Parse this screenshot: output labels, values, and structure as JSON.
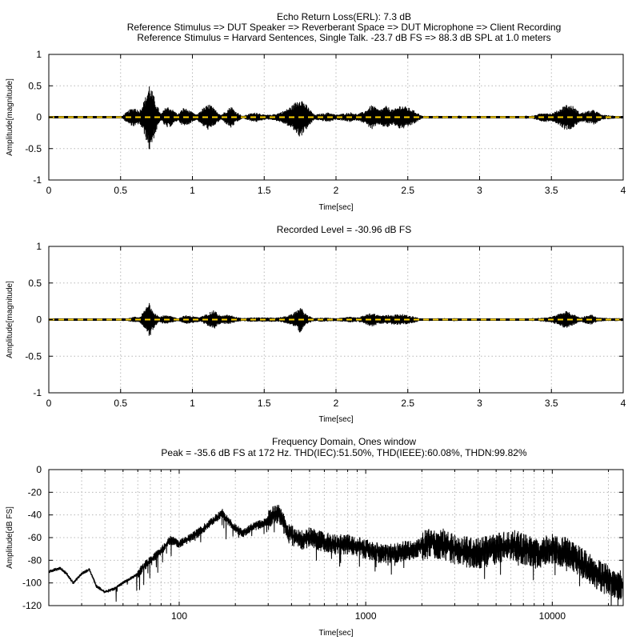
{
  "chart_data": [
    {
      "type": "line",
      "title_lines": [
        "Echo Return Loss(ERL): 7.3 dB",
        "Reference Stimulus => DUT Speaker => Reverberant Space => DUT Microphone => Client Recording",
        "Reference Stimulus = Harvard Sentences, Single Talk. -23.7 dB FS => 88.3 dB SPL at 1.0 meters"
      ],
      "xlabel": "Time[sec]",
      "ylabel": "Amplitude[magnitude]",
      "xlim": [
        0,
        4
      ],
      "ylim": [
        -1,
        1
      ],
      "xticks": [
        0,
        0.5,
        1,
        1.5,
        2,
        2.5,
        3,
        3.5,
        4
      ],
      "xtick_labels": [
        "0",
        "0.5",
        "1",
        "1.5",
        "2",
        "2.5",
        "3",
        "3.5",
        "4"
      ],
      "yticks": [
        -1,
        -0.5,
        0,
        0.5,
        1
      ],
      "ytick_labels": [
        "-1",
        "-0.5",
        "0",
        "0.5",
        "1"
      ],
      "grid": true,
      "series": [
        {
          "style": "waveform",
          "color": "#000000",
          "envelope": [
            [
              0.5,
              0.0
            ],
            [
              0.53,
              0.06
            ],
            [
              0.56,
              0.12
            ],
            [
              0.6,
              0.16
            ],
            [
              0.63,
              0.1
            ],
            [
              0.67,
              0.3
            ],
            [
              0.7,
              0.55
            ],
            [
              0.72,
              0.42
            ],
            [
              0.75,
              0.22
            ],
            [
              0.78,
              0.05
            ],
            [
              0.82,
              0.18
            ],
            [
              0.85,
              0.15
            ],
            [
              0.9,
              0.05
            ],
            [
              0.94,
              0.16
            ],
            [
              0.97,
              0.12
            ],
            [
              1.0,
              0.08
            ],
            [
              1.03,
              0.04
            ],
            [
              1.07,
              0.14
            ],
            [
              1.12,
              0.22
            ],
            [
              1.15,
              0.14
            ],
            [
              1.2,
              0.04
            ],
            [
              1.27,
              0.18
            ],
            [
              1.3,
              0.1
            ],
            [
              1.35,
              0.02
            ],
            [
              1.4,
              0.06
            ],
            [
              1.45,
              0.08
            ],
            [
              1.5,
              0.04
            ],
            [
              1.55,
              0.04
            ],
            [
              1.6,
              0.07
            ],
            [
              1.65,
              0.12
            ],
            [
              1.7,
              0.2
            ],
            [
              1.75,
              0.33
            ],
            [
              1.8,
              0.18
            ],
            [
              1.85,
              0.04
            ],
            [
              1.9,
              0.06
            ],
            [
              1.95,
              0.08
            ],
            [
              2.0,
              0.04
            ],
            [
              2.05,
              0.06
            ],
            [
              2.1,
              0.08
            ],
            [
              2.15,
              0.05
            ],
            [
              2.2,
              0.1
            ],
            [
              2.25,
              0.2
            ],
            [
              2.3,
              0.12
            ],
            [
              2.35,
              0.18
            ],
            [
              2.4,
              0.12
            ],
            [
              2.45,
              0.2
            ],
            [
              2.5,
              0.16
            ],
            [
              2.55,
              0.1
            ],
            [
              2.6,
              0.02
            ],
            [
              2.7,
              0.02
            ],
            [
              2.8,
              0.02
            ],
            [
              2.9,
              0.0
            ],
            [
              3.3,
              0.0
            ],
            [
              3.38,
              0.03
            ],
            [
              3.45,
              0.08
            ],
            [
              3.5,
              0.06
            ],
            [
              3.55,
              0.12
            ],
            [
              3.6,
              0.21
            ],
            [
              3.65,
              0.18
            ],
            [
              3.7,
              0.07
            ],
            [
              3.75,
              0.1
            ],
            [
              3.8,
              0.12
            ],
            [
              3.85,
              0.04
            ],
            [
              3.9,
              0.03
            ],
            [
              3.95,
              0.02
            ],
            [
              4.0,
              0.02
            ]
          ]
        },
        {
          "style": "reference-dashed",
          "color": "#ffd400",
          "y": 0
        }
      ]
    },
    {
      "type": "line",
      "title_lines": [
        "Recorded Level = -30.96 dB FS"
      ],
      "xlabel": "Time[sec]",
      "ylabel": "Amplitude[magnitude]",
      "xlim": [
        0,
        4
      ],
      "ylim": [
        -1,
        1
      ],
      "xticks": [
        0,
        0.5,
        1,
        1.5,
        2,
        2.5,
        3,
        3.5,
        4
      ],
      "xtick_labels": [
        "0",
        "0.5",
        "1",
        "1.5",
        "2",
        "2.5",
        "3",
        "3.5",
        "4"
      ],
      "yticks": [
        -1,
        -0.5,
        0,
        0.5,
        1
      ],
      "ytick_labels": [
        "-1",
        "-0.5",
        "0",
        "0.5",
        "1"
      ],
      "grid": true,
      "series": [
        {
          "style": "waveform",
          "color": "#000000",
          "envelope": [
            [
              0.5,
              0.0
            ],
            [
              0.55,
              0.02
            ],
            [
              0.6,
              0.04
            ],
            [
              0.63,
              0.03
            ],
            [
              0.67,
              0.14
            ],
            [
              0.7,
              0.25
            ],
            [
              0.73,
              0.12
            ],
            [
              0.77,
              0.04
            ],
            [
              0.8,
              0.06
            ],
            [
              0.85,
              0.05
            ],
            [
              0.9,
              0.02
            ],
            [
              0.95,
              0.06
            ],
            [
              1.0,
              0.05
            ],
            [
              1.05,
              0.03
            ],
            [
              1.1,
              0.08
            ],
            [
              1.15,
              0.13
            ],
            [
              1.2,
              0.05
            ],
            [
              1.25,
              0.07
            ],
            [
              1.3,
              0.04
            ],
            [
              1.35,
              0.02
            ],
            [
              1.4,
              0.03
            ],
            [
              1.5,
              0.03
            ],
            [
              1.6,
              0.03
            ],
            [
              1.65,
              0.05
            ],
            [
              1.7,
              0.08
            ],
            [
              1.75,
              0.18
            ],
            [
              1.8,
              0.06
            ],
            [
              1.85,
              0.02
            ],
            [
              1.9,
              0.03
            ],
            [
              2.0,
              0.02
            ],
            [
              2.05,
              0.03
            ],
            [
              2.1,
              0.04
            ],
            [
              2.15,
              0.03
            ],
            [
              2.2,
              0.06
            ],
            [
              2.25,
              0.1
            ],
            [
              2.3,
              0.06
            ],
            [
              2.4,
              0.07
            ],
            [
              2.45,
              0.08
            ],
            [
              2.5,
              0.06
            ],
            [
              2.55,
              0.04
            ],
            [
              2.6,
              0.01
            ],
            [
              2.8,
              0.01
            ],
            [
              2.9,
              0.0
            ],
            [
              3.35,
              0.0
            ],
            [
              3.4,
              0.02
            ],
            [
              3.5,
              0.04
            ],
            [
              3.55,
              0.08
            ],
            [
              3.6,
              0.12
            ],
            [
              3.65,
              0.08
            ],
            [
              3.7,
              0.03
            ],
            [
              3.75,
              0.06
            ],
            [
              3.78,
              0.07
            ],
            [
              3.82,
              0.03
            ],
            [
              3.9,
              0.02
            ],
            [
              4.0,
              0.02
            ]
          ]
        },
        {
          "style": "reference-dashed",
          "color": "#ffd400",
          "y": 0
        }
      ]
    },
    {
      "type": "line",
      "title_lines": [
        "Frequency Domain, Ones window",
        "Peak = -35.6 dB FS at 172 Hz. THD(IEC):51.50%, THD(IEEE):60.08%, THDN:99.82%"
      ],
      "xlabel": "Time[sec]",
      "ylabel": "Amplitude[dB FS]",
      "xscale": "log",
      "xlim": [
        20,
        24000
      ],
      "ylim": [
        -120,
        0
      ],
      "xticks": [
        100,
        1000,
        10000
      ],
      "xtick_labels": [
        "100",
        "1000",
        "10000"
      ],
      "yticks": [
        -120,
        -100,
        -80,
        -60,
        -40,
        -20,
        0
      ],
      "ytick_labels": [
        "-120",
        "-100",
        "-80",
        "-60",
        "-40",
        "-20",
        "0"
      ],
      "grid": true,
      "series": [
        {
          "style": "spectrum",
          "color": "#000000",
          "points": [
            [
              20,
              -90
            ],
            [
              23,
              -87
            ],
            [
              25,
              -92
            ],
            [
              27,
              -100
            ],
            [
              30,
              -92
            ],
            [
              33,
              -88
            ],
            [
              36,
              -103
            ],
            [
              40,
              -108
            ],
            [
              45,
              -105
            ],
            [
              50,
              -100
            ],
            [
              55,
              -96
            ],
            [
              60,
              -92
            ],
            [
              65,
              -85
            ],
            [
              70,
              -80
            ],
            [
              75,
              -76
            ],
            [
              80,
              -72
            ],
            [
              85,
              -66
            ],
            [
              90,
              -62
            ],
            [
              95,
              -64
            ],
            [
              100,
              -66
            ],
            [
              110,
              -62
            ],
            [
              120,
              -58
            ],
            [
              130,
              -54
            ],
            [
              140,
              -50
            ],
            [
              150,
              -46
            ],
            [
              160,
              -42
            ],
            [
              170,
              -38
            ],
            [
              180,
              -44
            ],
            [
              200,
              -52
            ],
            [
              220,
              -56
            ],
            [
              250,
              -50
            ],
            [
              280,
              -48
            ],
            [
              300,
              -45
            ],
            [
              320,
              -40
            ],
            [
              340,
              -38
            ],
            [
              360,
              -46
            ],
            [
              380,
              -56
            ],
            [
              400,
              -58
            ],
            [
              450,
              -62
            ],
            [
              500,
              -60
            ],
            [
              600,
              -64
            ],
            [
              700,
              -66
            ],
            [
              800,
              -66
            ],
            [
              900,
              -68
            ],
            [
              1000,
              -70
            ],
            [
              1200,
              -74
            ],
            [
              1500,
              -73
            ],
            [
              1800,
              -70
            ],
            [
              2000,
              -68
            ],
            [
              2300,
              -64
            ],
            [
              2600,
              -66
            ],
            [
              3000,
              -70
            ],
            [
              3500,
              -73
            ],
            [
              4000,
              -74
            ],
            [
              4500,
              -72
            ],
            [
              5000,
              -70
            ],
            [
              5500,
              -68
            ],
            [
              6000,
              -66
            ],
            [
              7000,
              -70
            ],
            [
              8000,
              -74
            ],
            [
              9000,
              -72
            ],
            [
              10000,
              -70
            ],
            [
              12000,
              -73
            ],
            [
              14000,
              -80
            ],
            [
              16000,
              -88
            ],
            [
              18000,
              -94
            ],
            [
              20000,
              -98
            ],
            [
              22000,
              -100
            ],
            [
              24000,
              -102
            ]
          ]
        }
      ]
    }
  ]
}
